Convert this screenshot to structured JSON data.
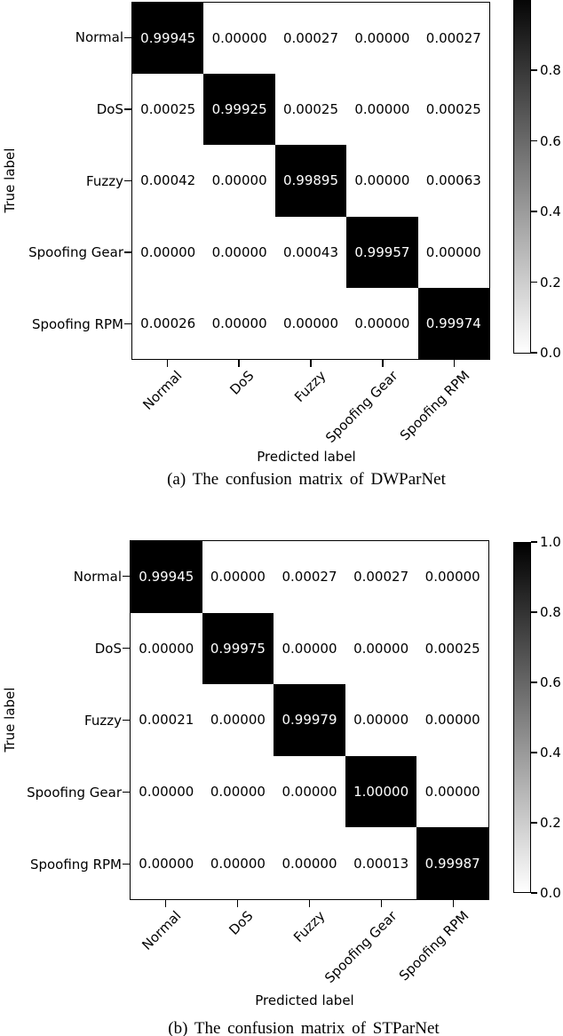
{
  "figure": {
    "background": "#ffffff",
    "text_color": "#000000",
    "cell_high_color": "#000000",
    "cell_low_color": "#ffffff"
  },
  "chart_data": [
    {
      "type": "heatmap",
      "caption": "(a) The confusion matrix of DWParNet",
      "xlabel": "Predicted label",
      "ylabel": "True label",
      "x_tick_labels": [
        "Normal",
        "DoS",
        "Fuzzy",
        "Spoofing Gear",
        "Spoofing RPM"
      ],
      "y_tick_labels": [
        "Normal",
        "DoS",
        "Fuzzy",
        "Spoofing Gear",
        "Spoofing RPM"
      ],
      "matrix": [
        [
          0.99945,
          0.0,
          0.00027,
          0.0,
          0.00027
        ],
        [
          0.00025,
          0.99925,
          0.00025,
          0.0,
          0.00025
        ],
        [
          0.00042,
          0.0,
          0.99895,
          0.0,
          0.00063
        ],
        [
          0.0,
          0.0,
          0.00043,
          0.99957,
          0.0
        ],
        [
          0.00026,
          0.0,
          0.0,
          0.0,
          0.99974
        ]
      ],
      "matrix_display": [
        [
          "0.99945",
          "0.00000",
          "0.00027",
          "0.00000",
          "0.00027"
        ],
        [
          "0.00025",
          "0.99925",
          "0.00025",
          "0.00000",
          "0.00025"
        ],
        [
          "0.00042",
          "0.00000",
          "0.99895",
          "0.00000",
          "0.00063"
        ],
        [
          "0.00000",
          "0.00000",
          "0.00043",
          "0.99957",
          "0.00000"
        ],
        [
          "0.00026",
          "0.00000",
          "0.00000",
          "0.00000",
          "0.99974"
        ]
      ],
      "colorbar": {
        "tick_labels": [
          "0.8",
          "0.6",
          "0.4",
          "0.2",
          "0.0"
        ],
        "range": [
          0.0,
          1.0
        ],
        "high_color": "#000000",
        "low_color": "#ffffff"
      }
    },
    {
      "type": "heatmap",
      "caption": "(b) The confusion matrix of STParNet",
      "xlabel": "Predicted label",
      "ylabel": "True label",
      "x_tick_labels": [
        "Normal",
        "DoS",
        "Fuzzy",
        "Spoofing Gear",
        "Spoofing RPM"
      ],
      "y_tick_labels": [
        "Normal",
        "DoS",
        "Fuzzy",
        "Spoofing Gear",
        "Spoofing RPM"
      ],
      "matrix": [
        [
          0.99945,
          0.0,
          0.00027,
          0.00027,
          0.0
        ],
        [
          0.0,
          0.99975,
          0.0,
          0.0,
          0.00025
        ],
        [
          0.00021,
          0.0,
          0.99979,
          0.0,
          0.0
        ],
        [
          0.0,
          0.0,
          0.0,
          1.0,
          0.0
        ],
        [
          0.0,
          0.0,
          0.0,
          0.00013,
          0.99987
        ]
      ],
      "matrix_display": [
        [
          "0.99945",
          "0.00000",
          "0.00027",
          "0.00027",
          "0.00000"
        ],
        [
          "0.00000",
          "0.99975",
          "0.00000",
          "0.00000",
          "0.00025"
        ],
        [
          "0.00021",
          "0.00000",
          "0.99979",
          "0.00000",
          "0.00000"
        ],
        [
          "0.00000",
          "0.00000",
          "0.00000",
          "1.00000",
          "0.00000"
        ],
        [
          "0.00000",
          "0.00000",
          "0.00000",
          "0.00013",
          "0.99987"
        ]
      ],
      "colorbar": {
        "tick_labels": [
          "1.0",
          "0.8",
          "0.6",
          "0.4",
          "0.2",
          "0.0"
        ],
        "range": [
          0.0,
          1.0
        ],
        "high_color": "#000000",
        "low_color": "#ffffff"
      }
    }
  ]
}
